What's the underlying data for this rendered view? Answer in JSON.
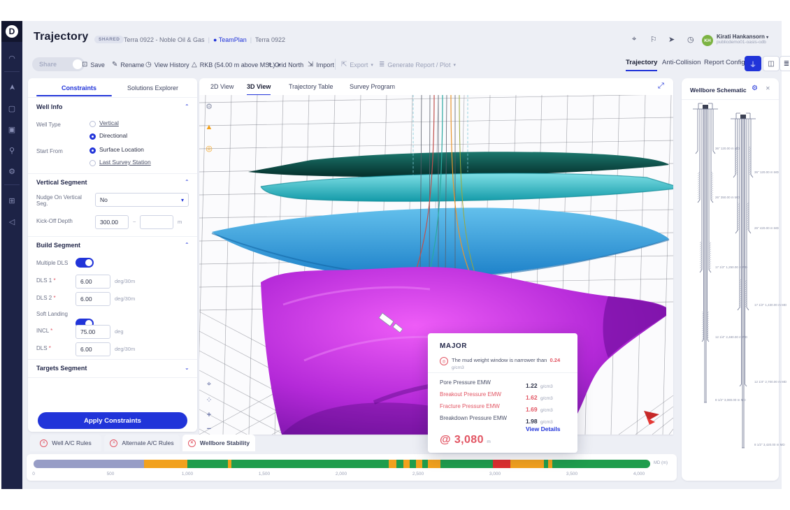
{
  "colors": {
    "accent": "#2134d9",
    "green": "#1f9d4d",
    "orange": "#f2a11d",
    "red": "#dd2f2f",
    "gray_segment": "#979dc6",
    "warning": "#e25563",
    "teal_surface": "#0e4f49",
    "cyan_surface": "#35c4cf",
    "blue_surface": "#2e9fd9",
    "purple_surface": "#a21fd0"
  },
  "icons": {
    "logo": "D",
    "dashboard": "◠",
    "compass": "➤",
    "tasks": "▢",
    "modules": "▣",
    "rig": "⚲",
    "settings": "⚙",
    "screens": "⊞",
    "megaphone": "◁",
    "location": "⌖",
    "flag": "⚐",
    "navigate": "➤",
    "help": "◷",
    "save": "⊡",
    "rename": "✎",
    "history": "◷",
    "rkb": "△",
    "grid_north": "⌖",
    "import": "⇲",
    "export": "⇱",
    "report": "≣",
    "caret": "▾",
    "wellbore": "⏚",
    "panels": "◫",
    "doc": "≣",
    "expand": "⤢",
    "gear": "⚙",
    "close": "✕",
    "warn": "▲",
    "circle": "◎",
    "axes": "⌖",
    "fit": "⁘",
    "plus": "+",
    "minus": "−",
    "chev_up": "⌃",
    "chev_down": "⌄",
    "cross": "✕"
  },
  "header": {
    "title": "Trajectory",
    "shared_badge": "SHARED",
    "breadcrumb_project": "Terra 0922 - Noble Oil & Gas",
    "breadcrumb_team": "● TeamPlan",
    "breadcrumb_well": "Terra 0922",
    "user_name": "Kirati Hankansorn",
    "user_caret": "▾",
    "user_org": "publicdemo01-oasis-odb",
    "user_initials": "KH"
  },
  "toolbar": {
    "share": "Share",
    "save": "Save",
    "rename": "Rename",
    "view_history": "View History",
    "rkb": "RKB (54.00 m above MSL)",
    "grid_north": "Grid North",
    "import": "Import",
    "export": "Export",
    "generate_report": "Generate Report / Plot"
  },
  "nav_tabs": {
    "trajectory": "Trajectory",
    "anti_collision": "Anti-Collision",
    "report_config": "Report Config"
  },
  "panel": {
    "tab_constraints": "Constraints",
    "tab_solutions": "Solutions Explorer",
    "well_info": {
      "title": "Well Info",
      "well_type_label": "Well Type",
      "vertical": "Vertical",
      "directional": "Directional",
      "start_from_label": "Start From",
      "surface_location": "Surface Location",
      "last_survey_station": "Last Survey Station"
    },
    "vertical_segment": {
      "title": "Vertical Segment",
      "nudge_label": "Nudge On Vertical Seg.",
      "nudge_value": "No",
      "kickoff_label": "Kick-Off Depth",
      "kickoff_value": "300.00",
      "kickoff_to": "",
      "range_sep": "~",
      "unit_m": "m"
    },
    "build_segment": {
      "title": "Build Segment",
      "multiple_dls": "Multiple DLS",
      "dls1_label": "DLS 1",
      "dls1_value": "6.00",
      "dls2_label": "DLS 2",
      "dls2_value": "6.00",
      "soft_landing": "Soft Landing",
      "incl_label": "INCL",
      "incl_value": "75.00",
      "dls_label": "DLS",
      "dls_value": "6.00",
      "unit_deg30": "deg/30m",
      "unit_deg": "deg",
      "required": "*"
    },
    "targets_segment": "Targets Segment",
    "apply_button": "Apply Constraints"
  },
  "view_tabs": {
    "d2": "2D View",
    "d3": "3D View",
    "table": "Trajectory Table",
    "survey": "Survey Program"
  },
  "popup": {
    "title": "MAJOR",
    "warning_prefix": "The mud weight window is narrower than",
    "warning_value": "0.24",
    "unit": "g/cm3",
    "rows": [
      {
        "label": "Pore Pressure EMW",
        "value": "1.22"
      },
      {
        "label": "Breakout Pressure EMW",
        "value": "1.62"
      },
      {
        "label": "Fracture Pressure EMW",
        "value": "1.69"
      },
      {
        "label": "Breakdown Pressure EMW",
        "value": "1.98"
      }
    ],
    "view_details": "View Details",
    "depth": "@ 3,080",
    "depth_unit": "m"
  },
  "schematic": {
    "title": "Wellbore Schematic",
    "labels_left": [
      "36\" 120.00 m MD",
      "26\" 350.00 m MD",
      "17 1/2\" 1,250.00 m MD",
      "12 1/4\" 2,480.00 m MD",
      "8 1/2\" 3,080.00 m MD"
    ],
    "labels_right": [
      "36\" 120.00 m MD",
      "26\" 420.00 m MD",
      "17 1/2\" 1,430.00 m MD",
      "12 1/4\" 2,700.00 m MD",
      "8 1/2\" 3,420.00 m MD"
    ]
  },
  "bottom_tabs": [
    {
      "label": "Well A/C Rules"
    },
    {
      "label": "Alternate A/C Rules"
    },
    {
      "label": "Wellbore Stability"
    }
  ],
  "timeline": {
    "unit": "MD (m)",
    "ticks": [
      "0",
      "500",
      "1,000",
      "1,500",
      "2,000",
      "2,500",
      "3,000",
      "3,500",
      "4,000"
    ],
    "segments": [
      {
        "color": "gray",
        "start": 0,
        "end": 17.9
      },
      {
        "color": "orange",
        "start": 17.9,
        "end": 24.9
      },
      {
        "color": "green",
        "start": 24.9,
        "end": 31.5
      },
      {
        "color": "orange",
        "start": 31.5,
        "end": 32.1
      },
      {
        "color": "green",
        "start": 32.1,
        "end": 57.6
      },
      {
        "color": "orange",
        "start": 57.6,
        "end": 58.8
      },
      {
        "color": "green",
        "start": 58.8,
        "end": 60.0
      },
      {
        "color": "orange",
        "start": 60.0,
        "end": 61.0
      },
      {
        "color": "green",
        "start": 61.0,
        "end": 62.0
      },
      {
        "color": "orange",
        "start": 62.0,
        "end": 63.0
      },
      {
        "color": "green",
        "start": 63.0,
        "end": 64.0
      },
      {
        "color": "orange",
        "start": 64.0,
        "end": 66.0
      },
      {
        "color": "green",
        "start": 66.0,
        "end": 74.5
      },
      {
        "color": "red",
        "start": 74.5,
        "end": 77.3
      },
      {
        "color": "orange",
        "start": 77.3,
        "end": 82.8
      },
      {
        "color": "green",
        "start": 82.8,
        "end": 83.4
      },
      {
        "color": "orange",
        "start": 83.4,
        "end": 84.1
      },
      {
        "color": "green",
        "start": 84.1,
        "end": 100
      }
    ]
  }
}
